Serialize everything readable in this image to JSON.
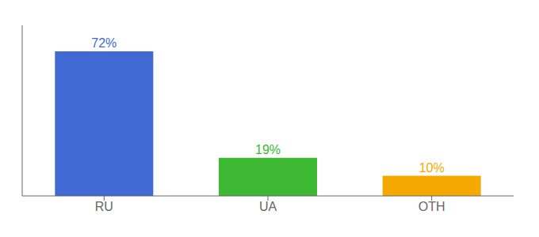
{
  "chart_data": {
    "type": "bar",
    "categories": [
      "RU",
      "UA",
      "OTH"
    ],
    "values": [
      72,
      19,
      10
    ],
    "value_labels": [
      "72%",
      "19%",
      "10%"
    ],
    "colors": [
      "#4169d4",
      "#3cb832",
      "#f5a800"
    ],
    "ylim": [
      0,
      85
    ],
    "data_labels": true,
    "tick_labels": "x",
    "grid": false
  }
}
